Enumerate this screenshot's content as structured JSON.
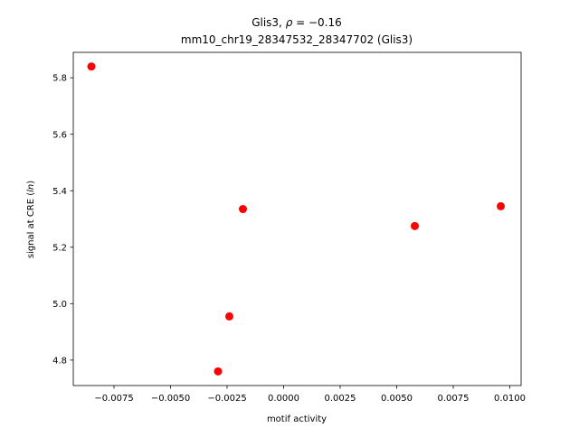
{
  "chart_data": {
    "type": "scatter",
    "title_line1": "Glis3, ρ = −0.16",
    "title_line2": "mm10_chr19_28347532_28347702 (Glis3)",
    "xlabel": "motif activity",
    "ylabel": "signal at CRE (ln)",
    "xlim": [
      -0.0093,
      0.0105
    ],
    "ylim": [
      4.71,
      5.89
    ],
    "xticks": [
      -0.0075,
      -0.005,
      -0.0025,
      0.0,
      0.0025,
      0.005,
      0.0075,
      0.01
    ],
    "xtick_labels": [
      "−0.0075",
      "−0.0050",
      "−0.0025",
      "0.0000",
      "0.0025",
      "0.0050",
      "0.0075",
      "0.0100"
    ],
    "yticks": [
      4.8,
      5.0,
      5.2,
      5.4,
      5.6,
      5.8
    ],
    "ytick_labels": [
      "4.8",
      "5.0",
      "5.2",
      "5.4",
      "5.6",
      "5.8"
    ],
    "grid": false,
    "point_color": "#ff0000",
    "points": [
      {
        "x": -0.0085,
        "y": 5.84
      },
      {
        "x": -0.0029,
        "y": 4.76
      },
      {
        "x": -0.0024,
        "y": 4.955
      },
      {
        "x": -0.0018,
        "y": 5.335
      },
      {
        "x": 0.0058,
        "y": 5.275
      },
      {
        "x": 0.0096,
        "y": 5.345
      }
    ]
  }
}
